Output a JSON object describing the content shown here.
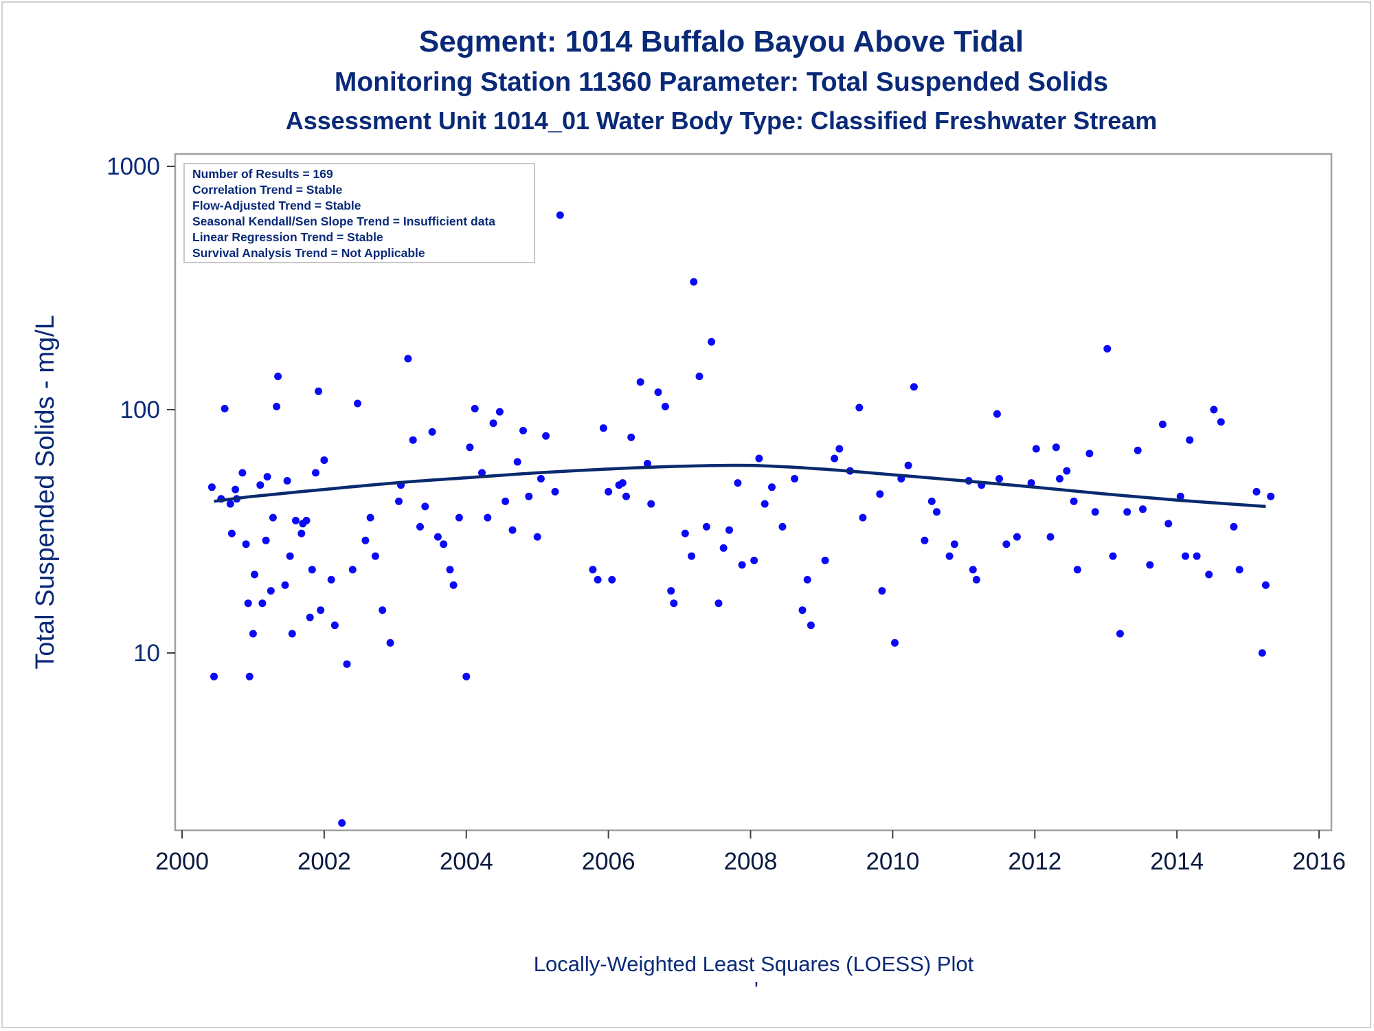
{
  "titles": {
    "line1": "Segment: 1014  Buffalo Bayou Above Tidal",
    "line2": "Monitoring Station 11360 Parameter: Total Suspended Solids",
    "line3": "Assessment Unit 1014_01    Water Body Type: Classified Freshwater Stream"
  },
  "footnote": "Locally-Weighted Least Squares (LOESS) Plot",
  "footnote_mark": "'",
  "inset": [
    "Number of Results = 169",
    "Correlation Trend = Stable",
    "Flow-Adjusted Trend = Stable",
    "Seasonal Kendall/Sen Slope Trend = Insufficient data",
    "Linear Regression Trend = Stable",
    "Survival Analysis Trend = Not Applicable"
  ],
  "colors": {
    "points": "#0a0af5",
    "loess": "#0a2a6e",
    "text": "#0a2a78",
    "axis": "#a0a0a0"
  },
  "chart_data": {
    "type": "scatter",
    "xlabel": "",
    "ylabel": "Total Suspended Solids - mg/L",
    "xlim": [
      2000,
      2016
    ],
    "ylim": [
      2,
      1000
    ],
    "yscale": "log",
    "x_ticks": [
      2000,
      2002,
      2004,
      2006,
      2008,
      2010,
      2012,
      2014,
      2016
    ],
    "y_ticks": [
      10,
      100,
      1000
    ],
    "y_tick_labels": [
      "10",
      "100",
      "1000"
    ],
    "grid": false,
    "legend": "none",
    "points": [
      [
        2000.42,
        48
      ],
      [
        2000.45,
        8
      ],
      [
        2000.55,
        43
      ],
      [
        2000.6,
        101
      ],
      [
        2000.68,
        41
      ],
      [
        2000.7,
        31
      ],
      [
        2000.75,
        47
      ],
      [
        2000.77,
        43
      ],
      [
        2000.85,
        55
      ],
      [
        2000.9,
        28
      ],
      [
        2000.93,
        16
      ],
      [
        2000.95,
        8
      ],
      [
        2001.02,
        21
      ],
      [
        2001.0,
        12
      ],
      [
        2001.1,
        49
      ],
      [
        2001.13,
        16
      ],
      [
        2001.18,
        29
      ],
      [
        2001.2,
        53
      ],
      [
        2001.25,
        18
      ],
      [
        2001.28,
        36
      ],
      [
        2001.33,
        103
      ],
      [
        2001.35,
        137
      ],
      [
        2001.45,
        19
      ],
      [
        2001.48,
        51
      ],
      [
        2001.52,
        25
      ],
      [
        2001.55,
        12
      ],
      [
        2001.6,
        35
      ],
      [
        2001.68,
        31
      ],
      [
        2001.7,
        34
      ],
      [
        2001.75,
        35
      ],
      [
        2001.8,
        14
      ],
      [
        2001.83,
        22
      ],
      [
        2001.88,
        55
      ],
      [
        2001.92,
        119
      ],
      [
        2001.95,
        15
      ],
      [
        2002.0,
        62
      ],
      [
        2002.1,
        20
      ],
      [
        2002.15,
        13
      ],
      [
        2002.25,
        2
      ],
      [
        2002.32,
        9
      ],
      [
        2002.4,
        22
      ],
      [
        2002.47,
        106
      ],
      [
        2002.58,
        29
      ],
      [
        2002.65,
        36
      ],
      [
        2002.72,
        25
      ],
      [
        2002.82,
        15
      ],
      [
        2002.93,
        11
      ],
      [
        2003.05,
        42
      ],
      [
        2003.08,
        49
      ],
      [
        2003.18,
        162
      ],
      [
        2003.25,
        75
      ],
      [
        2003.35,
        33
      ],
      [
        2003.42,
        40
      ],
      [
        2003.52,
        81
      ],
      [
        2003.6,
        30
      ],
      [
        2003.68,
        28
      ],
      [
        2003.77,
        22
      ],
      [
        2003.82,
        19
      ],
      [
        2003.9,
        36
      ],
      [
        2004.0,
        8
      ],
      [
        2004.05,
        70
      ],
      [
        2004.12,
        101
      ],
      [
        2004.22,
        55
      ],
      [
        2004.3,
        36
      ],
      [
        2004.38,
        88
      ],
      [
        2004.47,
        98
      ],
      [
        2004.55,
        42
      ],
      [
        2004.65,
        32
      ],
      [
        2004.72,
        61
      ],
      [
        2004.8,
        82
      ],
      [
        2004.88,
        44
      ],
      [
        2005.0,
        30
      ],
      [
        2005.05,
        52
      ],
      [
        2005.12,
        78
      ],
      [
        2005.25,
        46
      ],
      [
        2005.32,
        630
      ],
      [
        2005.78,
        22
      ],
      [
        2005.85,
        20
      ],
      [
        2005.93,
        84
      ],
      [
        2006.0,
        46
      ],
      [
        2006.05,
        20
      ],
      [
        2006.15,
        49
      ],
      [
        2006.2,
        50
      ],
      [
        2006.25,
        44
      ],
      [
        2006.32,
        77
      ],
      [
        2006.45,
        130
      ],
      [
        2006.55,
        60
      ],
      [
        2006.6,
        41
      ],
      [
        2006.7,
        118
      ],
      [
        2006.8,
        103
      ],
      [
        2006.88,
        18
      ],
      [
        2006.92,
        16
      ],
      [
        2007.08,
        31
      ],
      [
        2007.17,
        25
      ],
      [
        2007.2,
        335
      ],
      [
        2007.28,
        137
      ],
      [
        2007.38,
        33
      ],
      [
        2007.45,
        190
      ],
      [
        2007.55,
        16
      ],
      [
        2007.62,
        27
      ],
      [
        2007.7,
        32
      ],
      [
        2007.82,
        50
      ],
      [
        2007.88,
        23
      ],
      [
        2008.05,
        24
      ],
      [
        2008.12,
        63
      ],
      [
        2008.2,
        41
      ],
      [
        2008.3,
        48
      ],
      [
        2008.45,
        33
      ],
      [
        2008.62,
        52
      ],
      [
        2008.73,
        15
      ],
      [
        2008.8,
        20
      ],
      [
        2008.85,
        13
      ],
      [
        2009.05,
        24
      ],
      [
        2009.18,
        63
      ],
      [
        2009.25,
        69
      ],
      [
        2009.4,
        56
      ],
      [
        2009.53,
        102
      ],
      [
        2009.58,
        36
      ],
      [
        2009.82,
        45
      ],
      [
        2009.85,
        18
      ],
      [
        2010.03,
        11
      ],
      [
        2010.12,
        52
      ],
      [
        2010.22,
        59
      ],
      [
        2010.3,
        124
      ],
      [
        2010.45,
        29
      ],
      [
        2010.55,
        42
      ],
      [
        2010.62,
        38
      ],
      [
        2010.8,
        25
      ],
      [
        2010.87,
        28
      ],
      [
        2011.07,
        51
      ],
      [
        2011.13,
        22
      ],
      [
        2011.18,
        20
      ],
      [
        2011.25,
        49
      ],
      [
        2011.47,
        96
      ],
      [
        2011.5,
        52
      ],
      [
        2011.6,
        28
      ],
      [
        2011.75,
        30
      ],
      [
        2011.95,
        50
      ],
      [
        2012.02,
        69
      ],
      [
        2012.22,
        30
      ],
      [
        2012.3,
        70
      ],
      [
        2012.35,
        52
      ],
      [
        2012.45,
        56
      ],
      [
        2012.55,
        42
      ],
      [
        2012.6,
        22
      ],
      [
        2012.77,
        66
      ],
      [
        2012.85,
        38
      ],
      [
        2013.02,
        178
      ],
      [
        2013.1,
        25
      ],
      [
        2013.2,
        12
      ],
      [
        2013.3,
        38
      ],
      [
        2013.45,
        68
      ],
      [
        2013.52,
        39
      ],
      [
        2013.62,
        23
      ],
      [
        2013.8,
        87
      ],
      [
        2013.88,
        34
      ],
      [
        2014.05,
        44
      ],
      [
        2014.12,
        25
      ],
      [
        2014.18,
        75
      ],
      [
        2014.28,
        25
      ],
      [
        2014.45,
        21
      ],
      [
        2014.52,
        100
      ],
      [
        2014.62,
        89
      ],
      [
        2014.8,
        33
      ],
      [
        2014.88,
        22
      ],
      [
        2015.12,
        46
      ],
      [
        2015.2,
        10
      ],
      [
        2015.25,
        19
      ],
      [
        2015.32,
        44
      ]
    ],
    "loess": [
      [
        2000.45,
        42
      ],
      [
        2001.0,
        44
      ],
      [
        2002.0,
        47
      ],
      [
        2003.0,
        50
      ],
      [
        2004.0,
        52.5
      ],
      [
        2005.0,
        55
      ],
      [
        2006.0,
        57
      ],
      [
        2007.0,
        58.5
      ],
      [
        2008.0,
        59
      ],
      [
        2009.0,
        57
      ],
      [
        2010.0,
        54
      ],
      [
        2011.0,
        51
      ],
      [
        2012.0,
        48
      ],
      [
        2013.0,
        45
      ],
      [
        2014.0,
        42.5
      ],
      [
        2015.25,
        40
      ]
    ]
  }
}
